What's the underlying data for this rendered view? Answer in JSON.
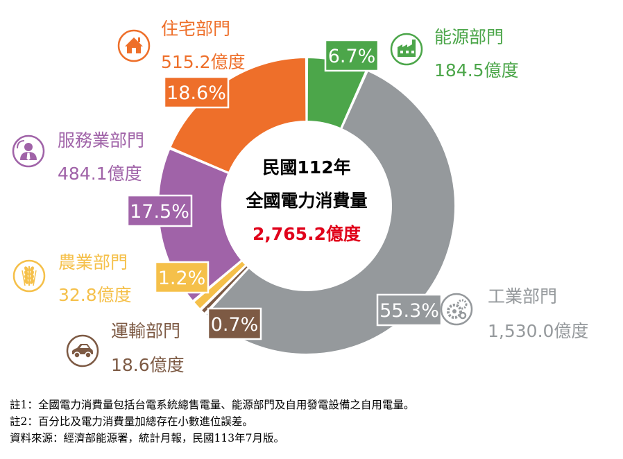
{
  "chart_data": {
    "type": "pie",
    "style": "donut",
    "center": {
      "line1": "民國112年",
      "line2": "全國電力消費量",
      "total": "2,765.2億度"
    },
    "unit": "億度",
    "slices": [
      {
        "name": "能源部門",
        "value": 184.5,
        "value_label": "184.5億度",
        "pct": 6.7,
        "pct_label": "6.7%",
        "color": "#4ca64a",
        "icon": "factory-icon"
      },
      {
        "name": "工業部門",
        "value": 1530.0,
        "value_label": "1,530.0億度",
        "pct": 55.3,
        "pct_label": "55.3%",
        "color": "#95999c",
        "icon": "gears-icon"
      },
      {
        "name": "運輸部門",
        "value": 18.6,
        "value_label": "18.6億度",
        "pct": 0.7,
        "pct_label": "0.7%",
        "color": "#7d5a44",
        "icon": "car-icon"
      },
      {
        "name": "農業部門",
        "value": 32.8,
        "value_label": "32.8億度",
        "pct": 1.2,
        "pct_label": "1.2%",
        "color": "#f5c04a",
        "icon": "wheat-icon"
      },
      {
        "name": "服務業部門",
        "value": 484.1,
        "value_label": "484.1億度",
        "pct": 17.5,
        "pct_label": "17.5%",
        "color": "#a063a8",
        "icon": "person-icon"
      },
      {
        "name": "住宅部門",
        "value": 515.2,
        "value_label": "515.2億度",
        "pct": 18.6,
        "pct_label": "18.6%",
        "color": "#ee6f2a",
        "icon": "house-icon"
      }
    ]
  },
  "notes": [
    "註1：全國電力消費量包括台電系統總售電量、能源部門及自用發電設備之自用電量。",
    "註2：百分比及電力消費量加總存在小數進位誤差。",
    "資料來源：經濟部能源署，統計月報，民國113年7月版。"
  ]
}
